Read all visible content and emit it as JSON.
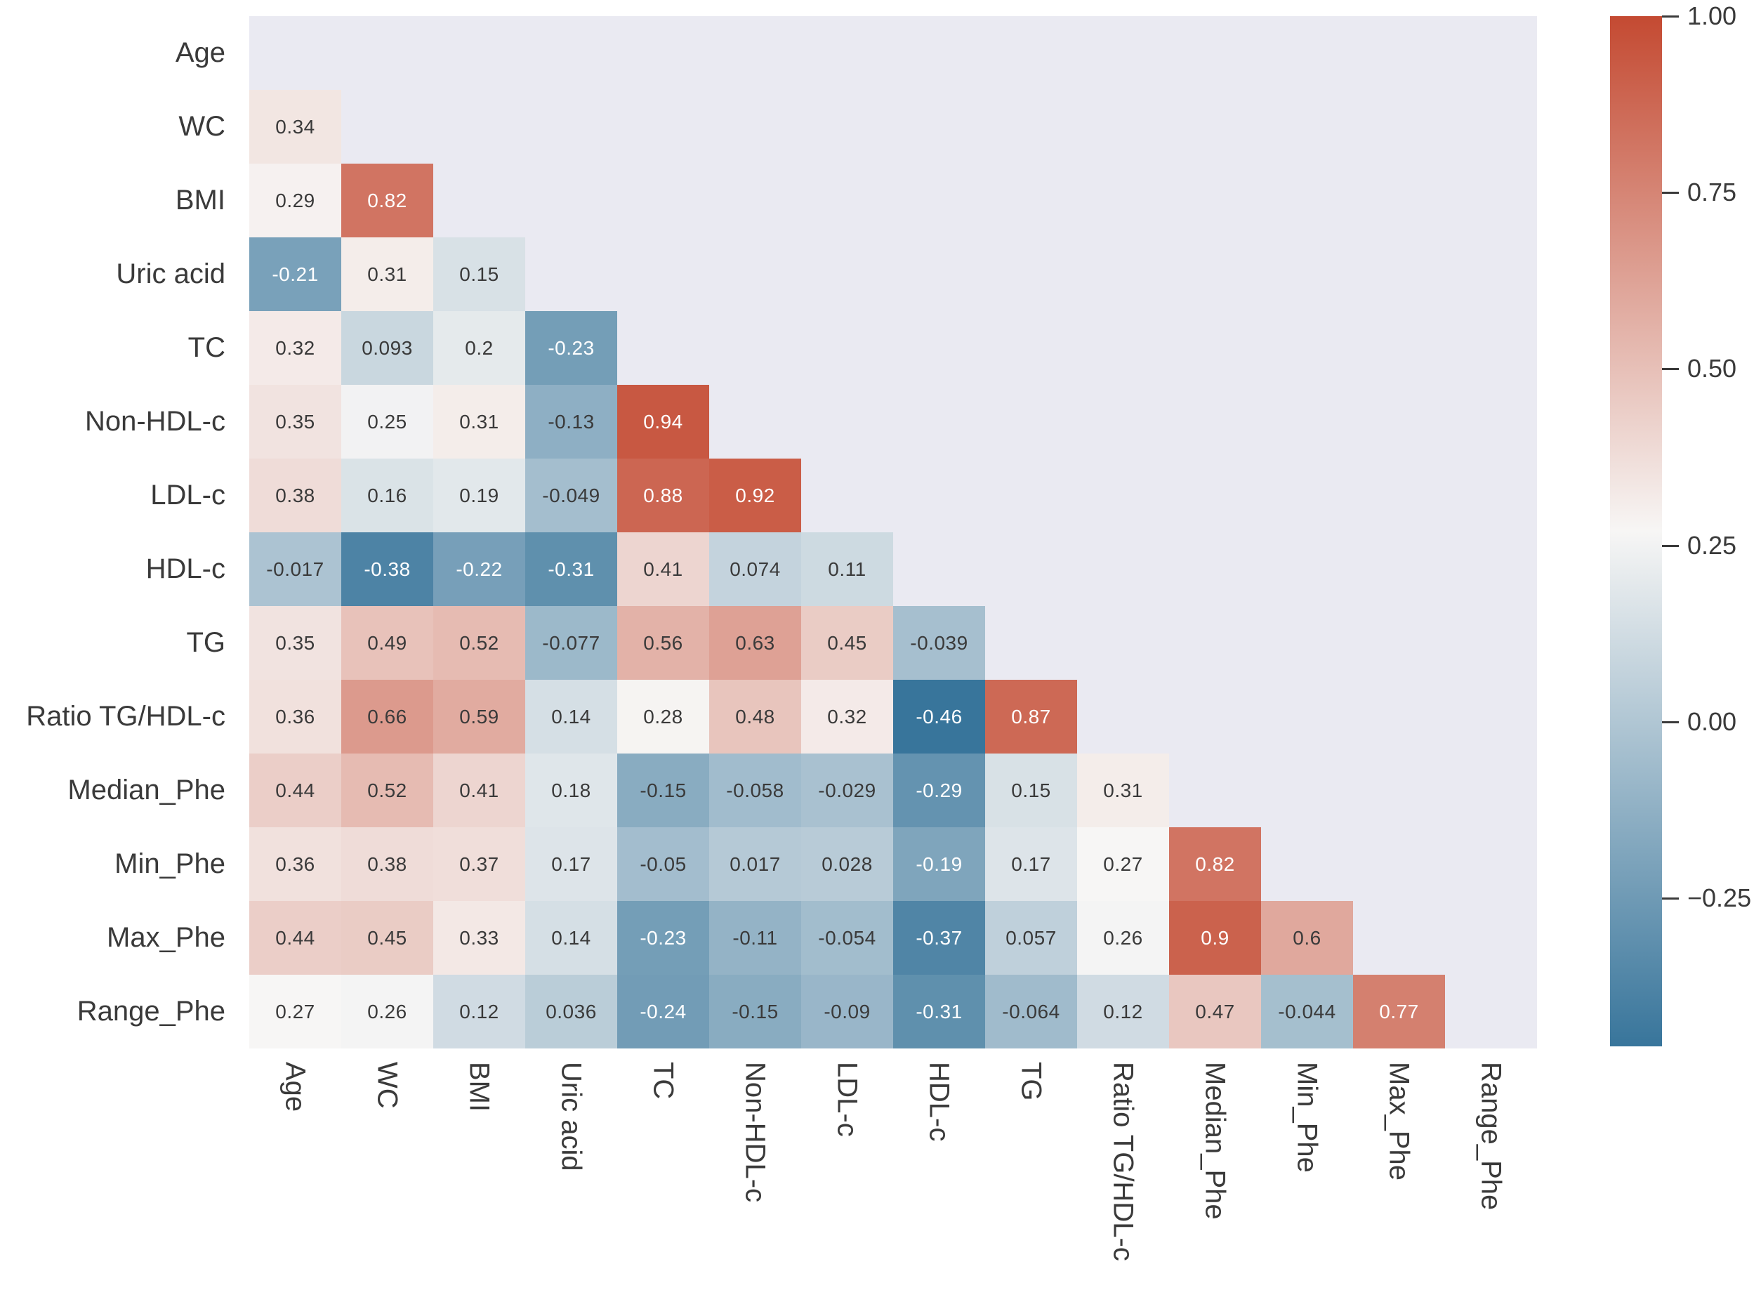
{
  "chart_data": {
    "type": "heatmap",
    "title": "",
    "subtitle": "",
    "description": "Lower-triangular correlation matrix heatmap",
    "variables": [
      "Age",
      "WC",
      "BMI",
      "Uric acid",
      "TC",
      "Non-HDL-c",
      "LDL-c",
      "HDL-c",
      "TG",
      "Ratio TG/HDL-c",
      "Median_Phe",
      "Min_Phe",
      "Max_Phe",
      "Range_Phe"
    ],
    "lower_triangle_only": true,
    "rows": [
      {
        "label": "Age",
        "values": []
      },
      {
        "label": "WC",
        "values": [
          "0.34"
        ]
      },
      {
        "label": "BMI",
        "values": [
          "0.29",
          "0.82"
        ]
      },
      {
        "label": "Uric acid",
        "values": [
          "-0.21",
          "0.31",
          "0.15"
        ]
      },
      {
        "label": "TC",
        "values": [
          "0.32",
          "0.093",
          "0.2",
          "-0.23"
        ]
      },
      {
        "label": "Non-HDL-c",
        "values": [
          "0.35",
          "0.25",
          "0.31",
          "-0.13",
          "0.94"
        ]
      },
      {
        "label": "LDL-c",
        "values": [
          "0.38",
          "0.16",
          "0.19",
          "-0.049",
          "0.88",
          "0.92"
        ]
      },
      {
        "label": "HDL-c",
        "values": [
          "-0.017",
          "-0.38",
          "-0.22",
          "-0.31",
          "0.41",
          "0.074",
          "0.11"
        ]
      },
      {
        "label": "TG",
        "values": [
          "0.35",
          "0.49",
          "0.52",
          "-0.077",
          "0.56",
          "0.63",
          "0.45",
          "-0.039"
        ]
      },
      {
        "label": "Ratio TG/HDL-c",
        "values": [
          "0.36",
          "0.66",
          "0.59",
          "0.14",
          "0.28",
          "0.48",
          "0.32",
          "-0.46",
          "0.87"
        ]
      },
      {
        "label": "Median_Phe",
        "values": [
          "0.44",
          "0.52",
          "0.41",
          "0.18",
          "-0.15",
          "-0.058",
          "-0.029",
          "-0.29",
          "0.15",
          "0.31"
        ]
      },
      {
        "label": "Min_Phe",
        "values": [
          "0.36",
          "0.38",
          "0.37",
          "0.17",
          "-0.05",
          "0.017",
          "0.028",
          "-0.19",
          "0.17",
          "0.27",
          "0.82"
        ]
      },
      {
        "label": "Max_Phe",
        "values": [
          "0.44",
          "0.45",
          "0.33",
          "0.14",
          "-0.23",
          "-0.11",
          "-0.054",
          "-0.37",
          "0.057",
          "0.26",
          "0.9",
          "0.6"
        ]
      },
      {
        "label": "Range_Phe",
        "values": [
          "0.27",
          "0.26",
          "0.12",
          "0.036",
          "-0.24",
          "-0.15",
          "-0.09",
          "-0.31",
          "-0.064",
          "0.12",
          "0.47",
          "-0.044",
          "0.77"
        ]
      }
    ],
    "colorbar": {
      "ticks": [
        "1.00",
        "0.75",
        "0.50",
        "0.25",
        "0.00",
        "−0.25"
      ],
      "tick_values": [
        1.0,
        0.75,
        0.5,
        0.25,
        0.0,
        -0.25
      ],
      "vmax": 1.0,
      "vmin": -0.46,
      "center_value": 0.27,
      "position": "right"
    },
    "colors": {
      "positive_max": "#c44a32",
      "negative_min": "#38759b",
      "midpoint": "#f7f6f5",
      "plot_background": "#eaeaf2",
      "annotation_dark": "#3a3a3a",
      "annotation_light": "#ffffff",
      "tick_label": "#3a3a3a"
    },
    "grid": false,
    "legend": false
  }
}
